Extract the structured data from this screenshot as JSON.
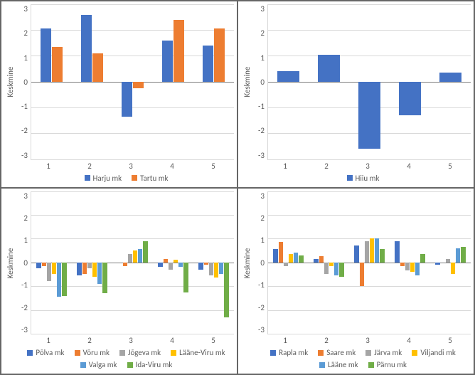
{
  "global": {
    "ylim": [
      -3,
      3
    ],
    "ytick_step": 1,
    "ylabel": "Keskmine",
    "categories": [
      "1",
      "2",
      "3",
      "4",
      "5"
    ],
    "grid_color": "#d9d9d9",
    "axis_color": "#808080",
    "background_color": "#ffffff",
    "tick_fontsize": 11,
    "label_fontsize": 11
  },
  "panels": [
    {
      "type": "bar",
      "bar_width": 0.35,
      "series": [
        {
          "name": "Harju mk",
          "color": "#4472c4",
          "values": [
            2.05,
            2.6,
            -1.35,
            1.6,
            1.4
          ]
        },
        {
          "name": "Tartu mk",
          "color": "#ed7d31",
          "values": [
            1.35,
            1.1,
            -0.25,
            2.4,
            2.05
          ]
        }
      ]
    },
    {
      "type": "bar",
      "bar_width": 0.35,
      "series": [
        {
          "name": "Hiiu mk",
          "color": "#4472c4",
          "values": [
            0.4,
            1.05,
            -2.6,
            -1.3,
            0.35
          ]
        }
      ]
    },
    {
      "type": "bar",
      "bar_width": 0.11,
      "series": [
        {
          "name": "Põlva mk",
          "color": "#4472c4",
          "values": [
            -0.25,
            -0.55,
            0.0,
            -0.2,
            -0.3
          ]
        },
        {
          "name": "Võru mk",
          "color": "#ed7d31",
          "values": [
            -0.15,
            -0.5,
            -0.15,
            0.15,
            -0.1
          ]
        },
        {
          "name": "Jõgeva mk",
          "color": "#a5a5a5",
          "values": [
            -0.8,
            -0.25,
            0.35,
            -0.3,
            -0.55
          ]
        },
        {
          "name": "Lääne-Viru mk",
          "color": "#ffc000",
          "values": [
            -0.5,
            -0.6,
            0.5,
            0.1,
            -0.65
          ]
        },
        {
          "name": "Valga mk",
          "color": "#5b9bd5",
          "values": [
            -1.45,
            -0.9,
            0.55,
            -0.2,
            -0.5
          ]
        },
        {
          "name": "Ida-Viru mk",
          "color": "#70ad47",
          "values": [
            -1.4,
            -1.3,
            0.9,
            -1.25,
            -2.3
          ]
        }
      ]
    },
    {
      "type": "bar",
      "bar_width": 0.11,
      "series": [
        {
          "name": "Rapla mk",
          "color": "#4472c4",
          "values": [
            0.55,
            0.15,
            0.7,
            0.9,
            -0.1
          ]
        },
        {
          "name": "Saare mk",
          "color": "#ed7d31",
          "values": [
            0.85,
            0.25,
            -1.0,
            -0.15,
            0.0
          ]
        },
        {
          "name": "Järva mk",
          "color": "#a5a5a5",
          "values": [
            -0.15,
            -0.5,
            0.9,
            -0.35,
            0.15
          ]
        },
        {
          "name": "Viljandi mk",
          "color": "#ffc000",
          "values": [
            0.35,
            -0.15,
            1.0,
            -0.4,
            -0.5
          ]
        },
        {
          "name": "Lääne mk",
          "color": "#5b9bd5",
          "values": [
            0.4,
            -0.55,
            1.0,
            -0.55,
            0.6
          ]
        },
        {
          "name": "Pärnu mk",
          "color": "#70ad47",
          "values": [
            0.3,
            -0.6,
            0.55,
            0.35,
            0.65
          ]
        }
      ]
    }
  ]
}
